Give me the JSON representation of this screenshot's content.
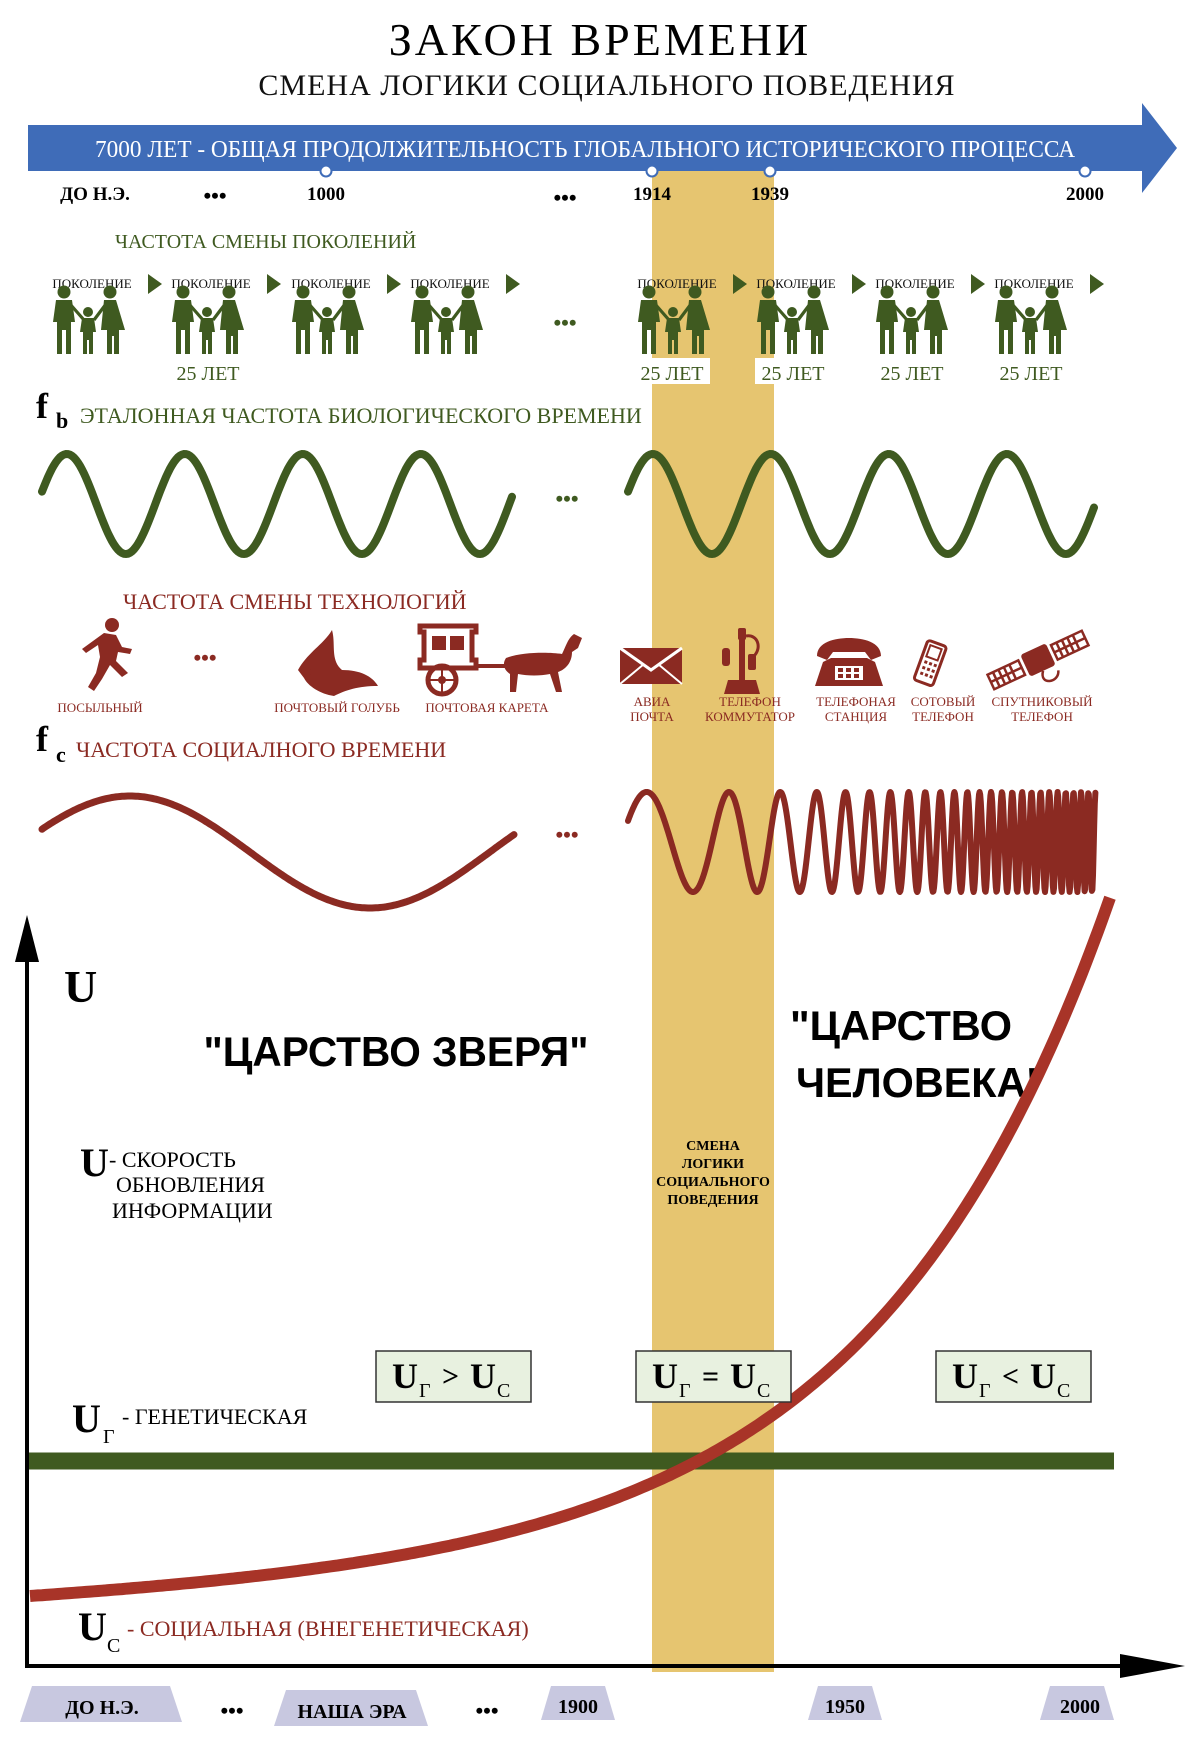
{
  "header": {
    "title": "ЗАКОН ВРЕМЕНИ",
    "subtitle": "СМЕНА ЛОГИКИ СОЦИАЛЬНОГО ПОВЕДЕНИЯ"
  },
  "timeline": {
    "arrow_text": "7000 ЛЕТ - ОБЩАЯ ПРОДОЛЖИТЕЛЬНОСТЬ ГЛОБАЛЬНОГО ИСТОРИЧЕСКОГО ПРОЦЕССА",
    "labels": [
      "ДО Н.Э.",
      "1000",
      "1914",
      "1939",
      "2000"
    ],
    "ellipsis": "•••"
  },
  "generations": {
    "title": "ЧАСТОТА СМЕНЫ ПОКОЛЕНИЙ",
    "item_label": "ПОКОЛЕНИЕ",
    "period_label": "25 ЛЕТ",
    "ellipsis": "•••"
  },
  "bio_wave": {
    "symbol": "f",
    "subscript": "b",
    "title": "ЭТАЛОННАЯ ЧАСТОТА БИОЛОГИЧЕСКОГО ВРЕМЕНИ",
    "ellipsis": "•••"
  },
  "technologies": {
    "title": "ЧАСТОТА СМЕНЫ ТЕХНОЛОГИЙ",
    "ellipsis": "•••",
    "items": [
      {
        "line1": "ПОСЫЛЬНЫЙ",
        "line2": "",
        "icon": "runner-icon"
      },
      {
        "line1": "ПОЧТОВЫЙ ГОЛУБЬ",
        "line2": "",
        "icon": "pigeon-icon"
      },
      {
        "line1": "ПОЧТОВАЯ КАРЕТА",
        "line2": "",
        "icon": "carriage-icon"
      },
      {
        "line1": "АВИА",
        "line2": "ПОЧТА",
        "icon": "envelope-icon"
      },
      {
        "line1": "ТЕЛЕФОН",
        "line2": "КОММУТАТОР",
        "icon": "candlestick-phone-icon"
      },
      {
        "line1": "ТЕЛЕФОНАЯ",
        "line2": "СТАНЦИЯ",
        "icon": "desk-phone-icon"
      },
      {
        "line1": "СОТОВЫЙ",
        "line2": "ТЕЛЕФОН",
        "icon": "cell-phone-icon"
      },
      {
        "line1": "СПУТНИКОВЫЙ",
        "line2": "ТЕЛЕФОН",
        "icon": "satellite-icon"
      }
    ]
  },
  "social_wave": {
    "symbol": "f",
    "subscript": "c",
    "title": "ЧАСТОТА СОЦИАЛНОГО ВРЕМЕНИ",
    "ellipsis": "•••"
  },
  "graph": {
    "y_symbol": "U",
    "kingdom_beast": "\"ЦАРСТВО ЗВЕРЯ\"",
    "kingdom_human_1": "\"ЦАРСТВО",
    "kingdom_human_2": "ЧЕЛОВЕКА\"",
    "u_def_symbol": "U",
    "u_def_1": " - СКОРОСТЬ",
    "u_def_2": "ОБНОВЛЕНИЯ",
    "u_def_3": "ИНФОРМАЦИИ",
    "band_text": [
      "СМЕНА",
      "ЛОГИКИ",
      "СОЦИАЛЬНОГО",
      "ПОВЕДЕНИЯ"
    ],
    "u_symbol": "U",
    "sub_g": "Г",
    "sub_c": "С",
    "rel_gt": ">",
    "rel_eq": "=",
    "rel_lt": "<",
    "genetic_label": " - ГЕНЕТИЧЕСКАЯ",
    "social_label": " - СОЦИАЛЬНАЯ (ВНЕГЕНЕТИЧЕСКАЯ)",
    "x_labels": [
      "ДО Н.Э.",
      "НАША ЭРА",
      "1900",
      "1950",
      "2000"
    ],
    "ellipsis": "•••"
  },
  "colors": {
    "green": "#3f5a20",
    "red": "#8b2a22",
    "band": "#e6c570",
    "arrow": "#3f6cb8",
    "tag": "#c8c8e0",
    "ineq_bg": "#e8f1e0"
  }
}
